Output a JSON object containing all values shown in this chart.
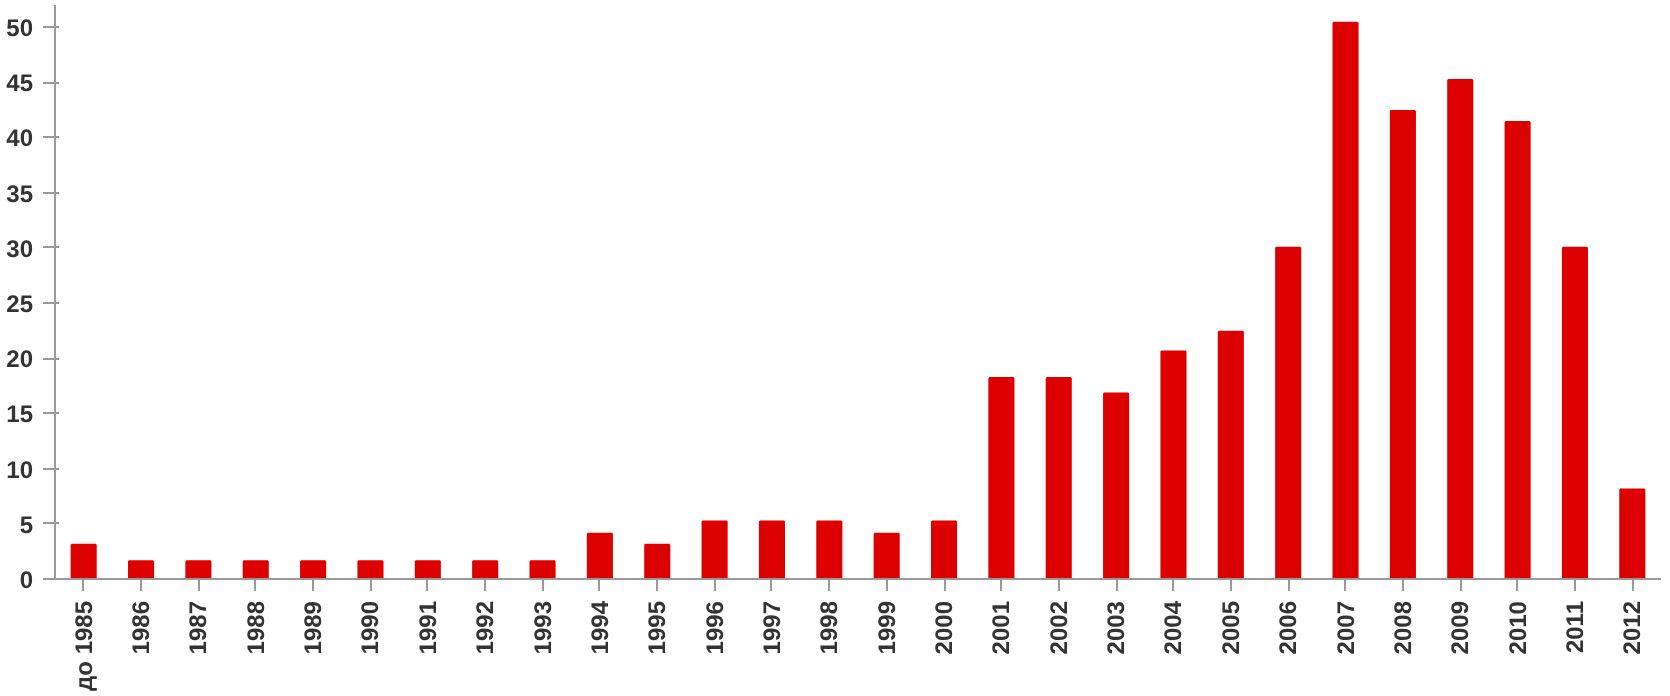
{
  "chart_data": {
    "type": "bar",
    "categories": [
      "до 1985",
      "1986",
      "1987",
      "1988",
      "1989",
      "1990",
      "1991",
      "1992",
      "1993",
      "1994",
      "1995",
      "1996",
      "1997",
      "1998",
      "1999",
      "2000",
      "2001",
      "2002",
      "2003",
      "2004",
      "2005",
      "2006",
      "2007",
      "2008",
      "2009",
      "2010",
      "2011",
      "2012"
    ],
    "values": [
      3.1,
      1.6,
      1.6,
      1.6,
      1.6,
      1.6,
      1.6,
      1.6,
      1.6,
      4.1,
      3.1,
      5.2,
      5.2,
      5.2,
      4.1,
      5.2,
      18.2,
      18.2,
      16.8,
      20.6,
      22.4,
      30.0,
      50.4,
      42.4,
      45.2,
      41.4,
      30.0,
      8.1
    ],
    "color": "#dd0000",
    "ylim": [
      0,
      52
    ],
    "yticks": [
      0,
      5,
      10,
      15,
      20,
      25,
      30,
      35,
      40,
      45,
      50
    ],
    "grid": false
  }
}
